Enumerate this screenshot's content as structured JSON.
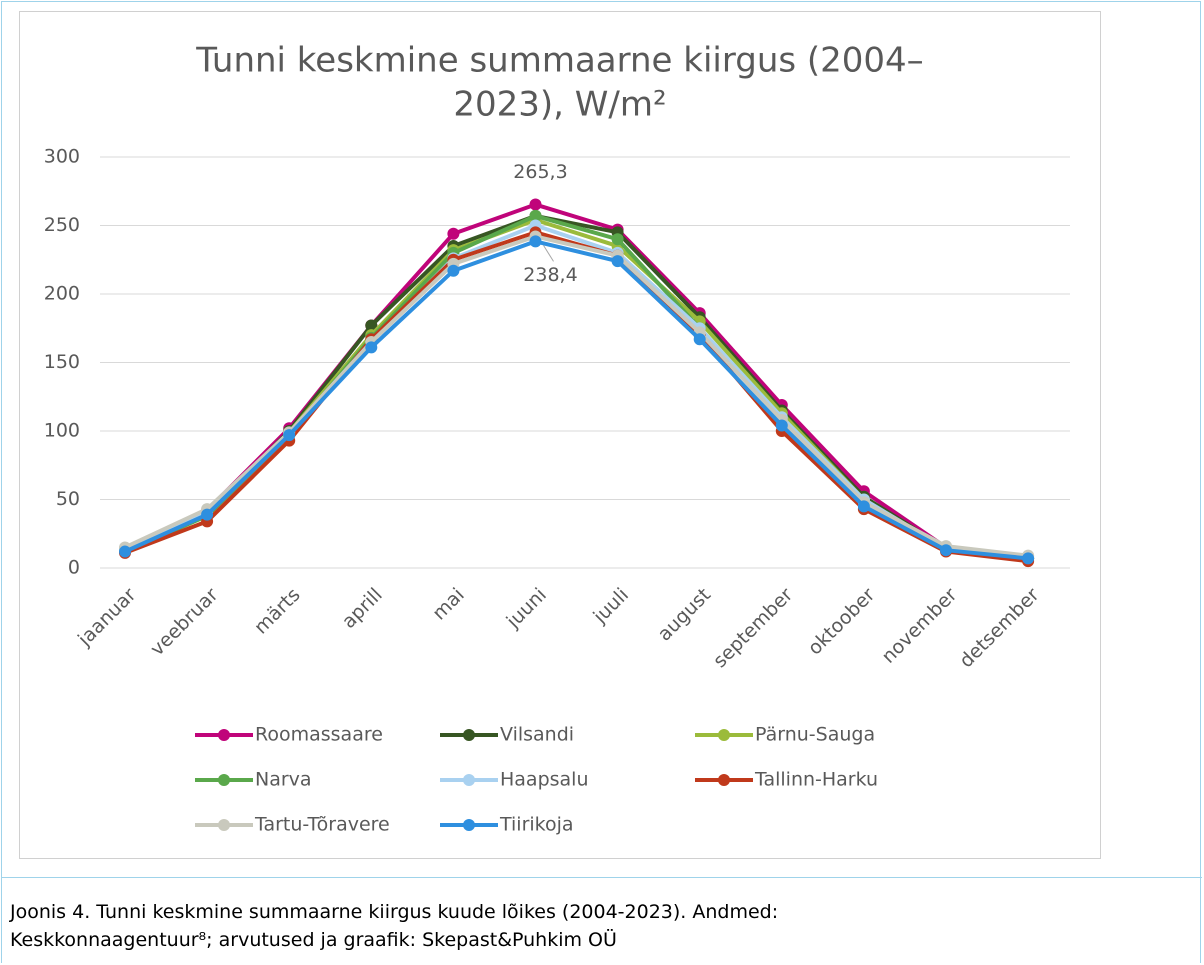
{
  "chart_data": {
    "type": "line",
    "title": [
      "Tunni keskmine summaarne kiirgus (2004–",
      "2023), W/m²"
    ],
    "categories": [
      "jaanuar",
      "veebruar",
      "märts",
      "aprill",
      "mai",
      "juuni",
      "juuli",
      "august",
      "september",
      "oktoober",
      "november",
      "detsember"
    ],
    "series": [
      {
        "name": "Roomassaare",
        "color": "#c0047a",
        "values": [
          12,
          42,
          102,
          177,
          244,
          265.3,
          247,
          186,
          119,
          56,
          15,
          7
        ],
        "value_labels": [
          null,
          null,
          null,
          null,
          null,
          "265,3",
          null,
          null,
          null,
          null,
          null,
          null
        ]
      },
      {
        "name": "Vilsandi",
        "color": "#375623",
        "values": [
          12,
          40,
          100,
          177,
          235,
          257,
          245,
          183,
          115,
          52,
          14,
          7
        ]
      },
      {
        "name": "Pärnu-Sauga",
        "color": "#9bbb3b",
        "values": [
          13,
          40,
          99,
          170,
          232,
          254,
          235,
          180,
          113,
          50,
          14,
          7
        ]
      },
      {
        "name": "Narva",
        "color": "#5aa84b",
        "values": [
          12,
          38,
          97,
          168,
          230,
          257,
          240,
          175,
          108,
          48,
          13,
          7
        ]
      },
      {
        "name": "Haapsalu",
        "color": "#a9d1f0",
        "values": [
          13,
          40,
          98,
          165,
          226,
          250,
          230,
          175,
          110,
          50,
          14,
          8
        ]
      },
      {
        "name": "Tallinn-Harku",
        "color": "#c0391b",
        "values": [
          11,
          34,
          93,
          167,
          225,
          245,
          228,
          170,
          100,
          43,
          12,
          5
        ]
      },
      {
        "name": "Tartu-Tõravere",
        "color": "#c9c9bd",
        "values": [
          15,
          43,
          99,
          165,
          222,
          242,
          228,
          172,
          108,
          48,
          16,
          9
        ]
      },
      {
        "name": "Tiirikoja",
        "color": "#2e8fdf",
        "values": [
          12,
          39,
          97,
          161,
          217,
          238.4,
          224,
          167,
          104,
          45,
          13,
          7
        ],
        "value_labels": [
          null,
          null,
          null,
          null,
          null,
          "238,4",
          null,
          null,
          null,
          null,
          null,
          null
        ]
      }
    ],
    "ylim": [
      0,
      300
    ],
    "yticks": [
      0,
      50,
      100,
      150,
      200,
      250,
      300
    ],
    "grid": true
  },
  "caption": [
    "Joonis 4. Tunni keskmine summaarne kiirgus kuude lõikes (2004-2023). Andmed:",
    "Keskkonnaagentuur⁸; arvutused ja graafik: Skepast&Puhkim OÜ"
  ]
}
